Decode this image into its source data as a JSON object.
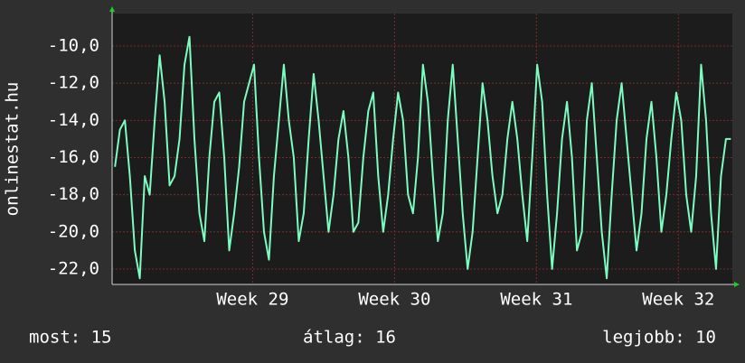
{
  "chart_data": {
    "type": "line",
    "ylabel": "onlinestat.hu",
    "x": [
      28.03,
      28.065,
      28.1,
      28.135,
      28.17,
      28.205,
      28.24,
      28.275,
      28.31,
      28.345,
      28.38,
      28.415,
      28.45,
      28.485,
      28.52,
      28.555,
      28.59,
      28.625,
      28.66,
      28.695,
      28.73,
      28.765,
      28.8,
      28.835,
      28.87,
      28.905,
      28.94,
      28.975,
      29.01,
      29.045,
      29.08,
      29.115,
      29.15,
      29.185,
      29.22,
      29.255,
      29.29,
      29.325,
      29.36,
      29.395,
      29.43,
      29.465,
      29.5,
      29.535,
      29.57,
      29.605,
      29.64,
      29.675,
      29.71,
      29.745,
      29.78,
      29.815,
      29.85,
      29.885,
      29.92,
      29.955,
      29.99,
      30.025,
      30.06,
      30.095,
      30.13,
      30.165,
      30.2,
      30.235,
      30.27,
      30.305,
      30.34,
      30.375,
      30.41,
      30.445,
      30.48,
      30.515,
      30.55,
      30.585,
      30.62,
      30.655,
      30.69,
      30.725,
      30.76,
      30.795,
      30.83,
      30.865,
      30.9,
      30.935,
      30.97,
      31.005,
      31.04,
      31.075,
      31.11,
      31.145,
      31.18,
      31.215,
      31.25,
      31.285,
      31.32,
      31.355,
      31.39,
      31.425,
      31.46,
      31.495,
      31.53,
      31.565,
      31.6,
      31.635,
      31.67,
      31.705,
      31.74,
      31.775,
      31.81,
      31.845,
      31.88,
      31.915,
      31.95,
      31.985,
      32.02,
      32.055,
      32.09,
      32.125,
      32.16,
      32.195,
      32.23,
      32.265,
      32.3,
      32.335,
      32.37
    ],
    "series": [
      {
        "color": "#7dfcc0",
        "values": [
          -16.5,
          -14.5,
          -14,
          -17,
          -21,
          -22.5,
          -17,
          -18,
          -14,
          -10.5,
          -13,
          -17.5,
          -17,
          -15,
          -11,
          -9.5,
          -15,
          -19,
          -20.5,
          -16,
          -13,
          -12.5,
          -16,
          -21,
          -19,
          -16.5,
          -13,
          -12,
          -11,
          -16,
          -20,
          -21.5,
          -17,
          -14,
          -11,
          -14,
          -16,
          -20.5,
          -19,
          -15,
          -11.5,
          -14,
          -17,
          -20,
          -18,
          -15,
          -13.5,
          -16,
          -20,
          -19.5,
          -16,
          -13.5,
          -12.5,
          -17,
          -20,
          -18,
          -15,
          -12.5,
          -14,
          -18,
          -19,
          -16,
          -11,
          -13,
          -17,
          -20.5,
          -19,
          -14,
          -11,
          -15,
          -19,
          -22,
          -20,
          -16,
          -12,
          -14,
          -17,
          -19,
          -18,
          -15,
          -13,
          -15,
          -18,
          -20.5,
          -16,
          -11,
          -13,
          -18,
          -22,
          -19,
          -15,
          -13,
          -16,
          -21,
          -20,
          -14,
          -12,
          -16,
          -20,
          -22.5,
          -18,
          -14,
          -12,
          -15,
          -18,
          -21,
          -19,
          -15,
          -13,
          -16,
          -20,
          -18,
          -15,
          -12.5,
          -14,
          -18,
          -20,
          -17,
          -11,
          -14,
          -19,
          -22,
          -17,
          -15,
          -15
        ]
      }
    ],
    "xlim": [
      28.01,
      32.38
    ],
    "xticks": [
      {
        "value": 29,
        "label": "Week 29"
      },
      {
        "value": 30,
        "label": "Week 30"
      },
      {
        "value": 31,
        "label": "Week 31"
      },
      {
        "value": 32,
        "label": "Week 32"
      }
    ],
    "ylim": [
      -22.83,
      -8.25
    ],
    "yticks": [
      {
        "value": -10,
        "label": "-10,0"
      },
      {
        "value": -12,
        "label": "-12,0"
      },
      {
        "value": -14,
        "label": "-14,0"
      },
      {
        "value": -16,
        "label": "-16,0"
      },
      {
        "value": -18,
        "label": "-18,0"
      },
      {
        "value": -20,
        "label": "-20,0"
      },
      {
        "value": -22,
        "label": "-22,0"
      }
    ],
    "grid": true
  },
  "stats": {
    "current": "most: 15",
    "average": "átlag: 16",
    "best": "legjobb: 10"
  }
}
